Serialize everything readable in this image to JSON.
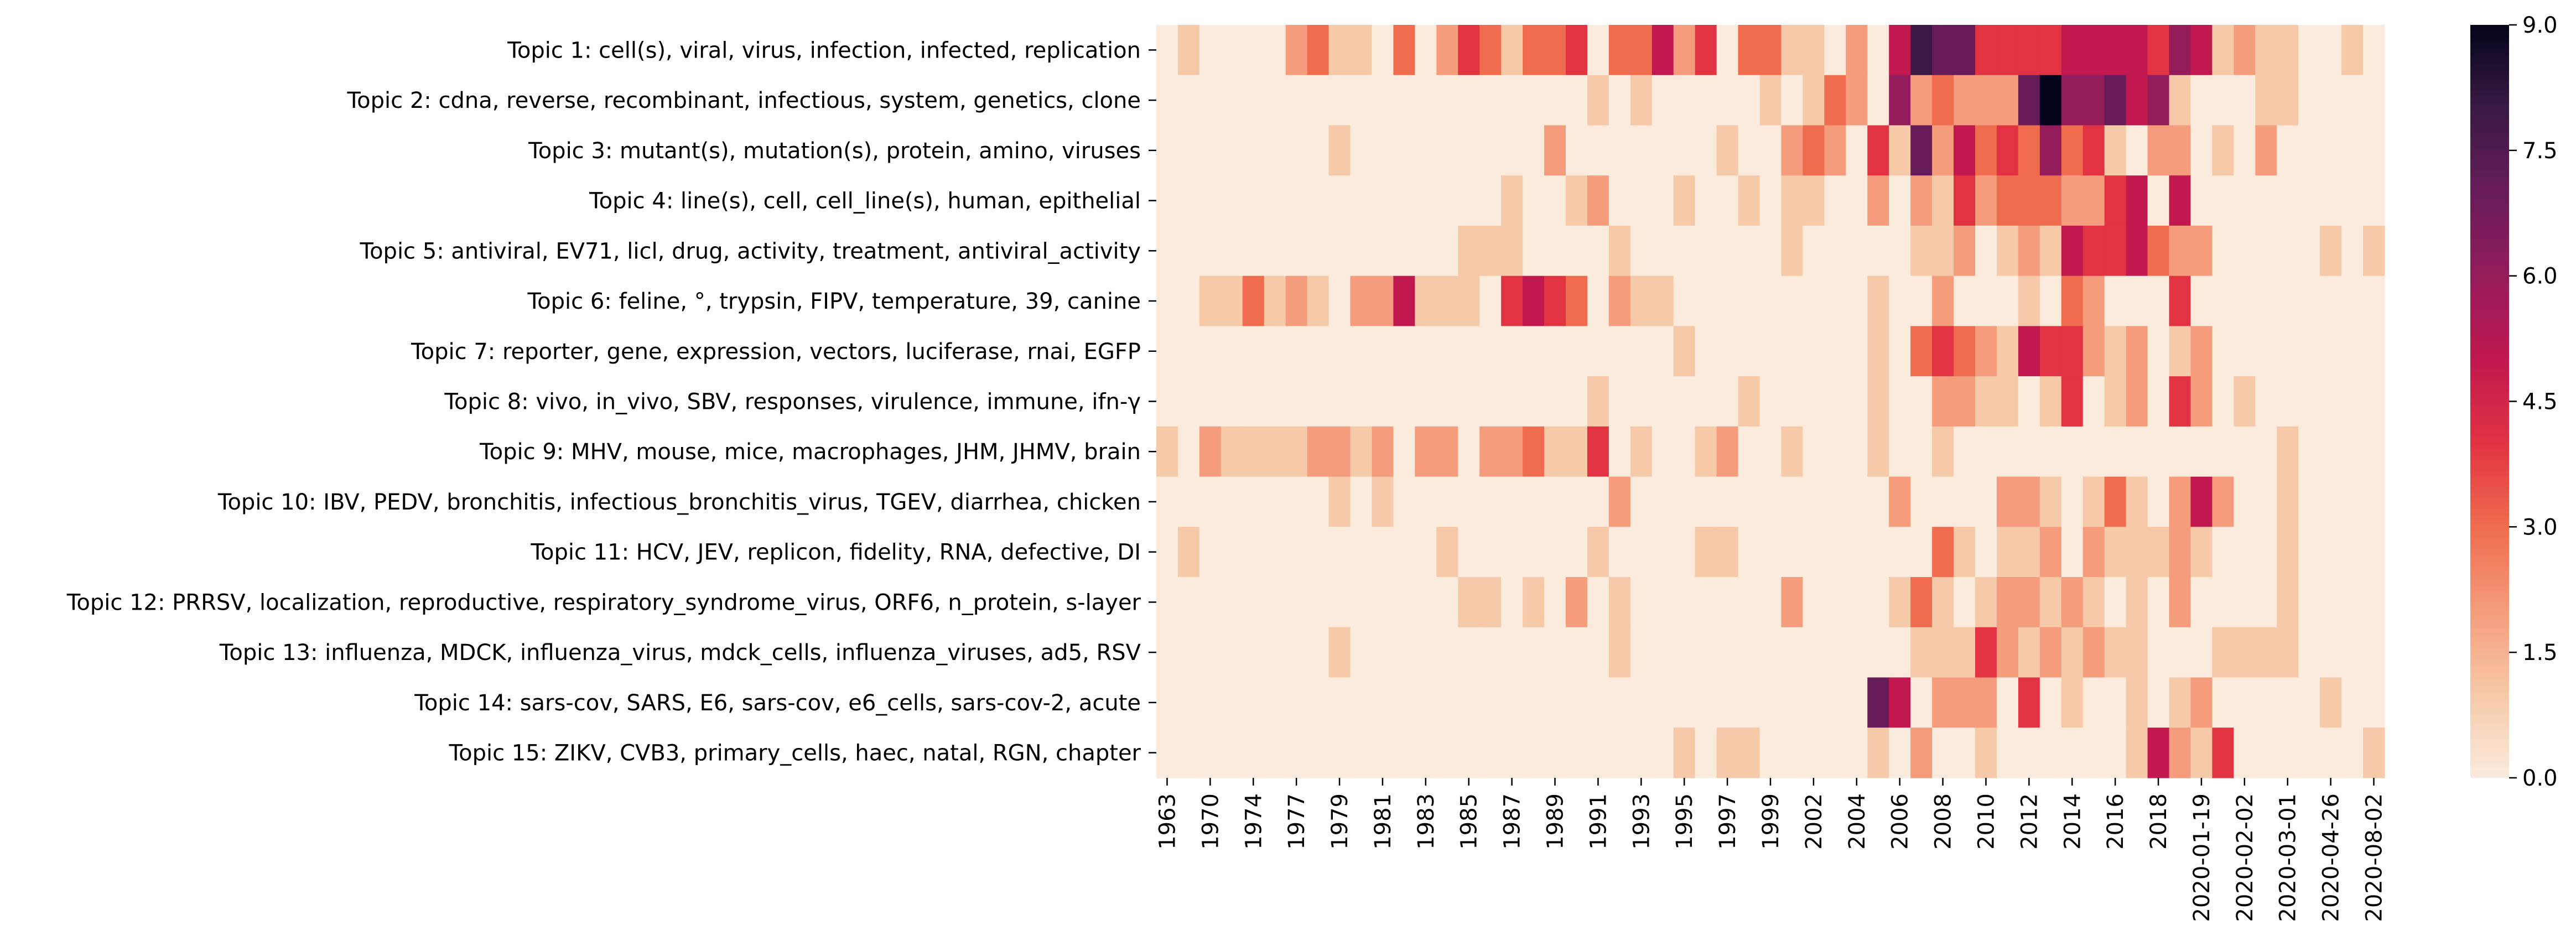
{
  "chart_data": {
    "type": "heatmap",
    "title": "",
    "xlabel": "",
    "ylabel": "",
    "rows": [
      "Topic 1: cell(s), viral, virus, infection, infected, replication",
      "Topic 2: cdna, reverse, recombinant, infectious, system, genetics, clone",
      "Topic 3: mutant(s), mutation(s), protein, amino, viruses",
      "Topic 4: line(s), cell, cell_line(s), human, epithelial",
      "Topic 5: antiviral, EV71, licl, drug, activity, treatment, antiviral_activity",
      "Topic 6: feline, °, trypsin, FIPV, temperature, 39, canine",
      "Topic 7: reporter, gene, expression, vectors, luciferase, rnai, EGFP",
      "Topic 8: vivo, in_vivo, SBV, responses, virulence, immune, ifn-γ",
      "Topic 9: MHV, mouse, mice, macrophages, JHM, JHMV, brain",
      "Topic 10: IBV, PEDV, bronchitis, infectious_bronchitis_virus, TGEV, diarrhea, chicken",
      "Topic 11: HCV, JEV, replicon, fidelity, RNA, defective, DI",
      "Topic 12: PRRSV, localization, reproductive, respiratory_syndrome_virus, ORF6, n_protein, s-layer",
      "Topic 13: influenza, MDCK, influenza_virus, mdck_cells, influenza_viruses, ad5, RSV",
      "Topic 14: sars-cov, SARS, E6, sars-cov, e6_cells, sars-cov-2, acute",
      "Topic 15: ZIKV, CVB3, primary_cells, haec, natal, RGN, chapter"
    ],
    "x_tick_labels": [
      "1963",
      "1970",
      "1974",
      "1977",
      "1979",
      "1981",
      "1983",
      "1985",
      "1987",
      "1989",
      "1991",
      "1993",
      "1995",
      "1997",
      "1999",
      "2002",
      "2004",
      "2006",
      "2008",
      "2010",
      "2012",
      "2014",
      "2016",
      "2018",
      "2020-01-19",
      "2020-02-02",
      "2020-03-01",
      "2020-04-26",
      "2020-08-02"
    ],
    "num_columns": 57,
    "values": [
      [
        0,
        1,
        0,
        0,
        0,
        0,
        2,
        3,
        1,
        1,
        0,
        3,
        0,
        2,
        4,
        3,
        1,
        3,
        3,
        4,
        0,
        3,
        3,
        5,
        2,
        4,
        0,
        3,
        3,
        1,
        1,
        0,
        2,
        0,
        5,
        8,
        7,
        7,
        4,
        4,
        4,
        4,
        5,
        5,
        5,
        5,
        4,
        6,
        5,
        1,
        2,
        1,
        1,
        0,
        0,
        1,
        0
      ],
      [
        0,
        0,
        0,
        0,
        0,
        0,
        0,
        0,
        0,
        0,
        0,
        0,
        0,
        0,
        0,
        0,
        0,
        0,
        0,
        0,
        1,
        0,
        1,
        0,
        0,
        0,
        0,
        0,
        1,
        0,
        1,
        3,
        2,
        0,
        6,
        2,
        3,
        2,
        2,
        2,
        7,
        9,
        6,
        6,
        7,
        5,
        6,
        1,
        0,
        0,
        0,
        1,
        1,
        0,
        0,
        0,
        0
      ],
      [
        0,
        0,
        0,
        0,
        0,
        0,
        0,
        0,
        1,
        0,
        0,
        0,
        0,
        0,
        0,
        0,
        0,
        0,
        2,
        0,
        0,
        0,
        0,
        0,
        0,
        0,
        1,
        0,
        0,
        2,
        3,
        2,
        0,
        4,
        1,
        7,
        2,
        5,
        3,
        4,
        3,
        6,
        3,
        4,
        1,
        0,
        2,
        2,
        0,
        1,
        0,
        2,
        0,
        0,
        0,
        0,
        0
      ],
      [
        0,
        0,
        0,
        0,
        0,
        0,
        0,
        0,
        0,
        0,
        0,
        0,
        0,
        0,
        0,
        0,
        1,
        0,
        0,
        1,
        2,
        0,
        0,
        0,
        1,
        0,
        0,
        1,
        0,
        1,
        1,
        0,
        0,
        2,
        0,
        2,
        1,
        4,
        2,
        3,
        3,
        3,
        2,
        2,
        4,
        5,
        0,
        5,
        0,
        0,
        0,
        0,
        0,
        0,
        0,
        0,
        0
      ],
      [
        0,
        0,
        0,
        0,
        0,
        0,
        0,
        0,
        0,
        0,
        0,
        0,
        0,
        0,
        1,
        1,
        1,
        0,
        0,
        0,
        0,
        1,
        0,
        0,
        0,
        0,
        0,
        0,
        0,
        1,
        0,
        0,
        0,
        0,
        0,
        1,
        1,
        2,
        0,
        1,
        2,
        1,
        5,
        4,
        4,
        5,
        3,
        2,
        2,
        0,
        0,
        0,
        0,
        0,
        1,
        0,
        1
      ],
      [
        0,
        0,
        1,
        1,
        3,
        1,
        2,
        1,
        0,
        2,
        2,
        5,
        1,
        1,
        1,
        0,
        4,
        5,
        4,
        3,
        0,
        2,
        1,
        1,
        0,
        0,
        0,
        0,
        0,
        0,
        0,
        0,
        0,
        1,
        0,
        0,
        2,
        0,
        0,
        0,
        1,
        0,
        3,
        2,
        0,
        0,
        0,
        4,
        0,
        0,
        0,
        0,
        0,
        0,
        0,
        0,
        0
      ],
      [
        0,
        0,
        0,
        0,
        0,
        0,
        0,
        0,
        0,
        0,
        0,
        0,
        0,
        0,
        0,
        0,
        0,
        0,
        0,
        0,
        0,
        0,
        0,
        0,
        1,
        0,
        0,
        0,
        0,
        0,
        0,
        0,
        0,
        1,
        0,
        3,
        4,
        3,
        2,
        1,
        5,
        4,
        4,
        2,
        1,
        2,
        0,
        1,
        2,
        0,
        0,
        0,
        0,
        0,
        0,
        0,
        0
      ],
      [
        0,
        0,
        0,
        0,
        0,
        0,
        0,
        0,
        0,
        0,
        0,
        0,
        0,
        0,
        0,
        0,
        0,
        0,
        0,
        0,
        1,
        0,
        0,
        0,
        0,
        0,
        0,
        1,
        0,
        0,
        0,
        0,
        0,
        1,
        0,
        0,
        2,
        2,
        1,
        1,
        0,
        1,
        4,
        0,
        1,
        2,
        0,
        4,
        2,
        0,
        1,
        0,
        0,
        0,
        0,
        0,
        0
      ],
      [
        1,
        0,
        2,
        1,
        1,
        1,
        1,
        2,
        2,
        1,
        2,
        0,
        2,
        2,
        0,
        2,
        2,
        3,
        1,
        1,
        4,
        0,
        1,
        0,
        0,
        1,
        2,
        0,
        0,
        1,
        0,
        0,
        0,
        1,
        0,
        0,
        1,
        0,
        0,
        0,
        0,
        0,
        0,
        0,
        0,
        0,
        0,
        0,
        0,
        0,
        0,
        0,
        1,
        0,
        0,
        0,
        0
      ],
      [
        0,
        0,
        0,
        0,
        0,
        0,
        0,
        0,
        1,
        0,
        1,
        0,
        0,
        0,
        0,
        0,
        0,
        0,
        0,
        0,
        0,
        2,
        0,
        0,
        0,
        0,
        0,
        0,
        0,
        0,
        0,
        0,
        0,
        0,
        2,
        0,
        0,
        0,
        0,
        2,
        2,
        1,
        0,
        1,
        3,
        1,
        0,
        2,
        5,
        2,
        0,
        0,
        1,
        0,
        0,
        0,
        0
      ],
      [
        0,
        1,
        0,
        0,
        0,
        0,
        0,
        0,
        0,
        0,
        0,
        0,
        0,
        1,
        0,
        0,
        0,
        0,
        0,
        0,
        1,
        0,
        0,
        0,
        0,
        1,
        1,
        0,
        0,
        0,
        0,
        0,
        0,
        0,
        0,
        0,
        3,
        1,
        0,
        1,
        1,
        2,
        0,
        2,
        1,
        1,
        1,
        2,
        1,
        0,
        0,
        0,
        1,
        0,
        0,
        0,
        0
      ],
      [
        0,
        0,
        0,
        0,
        0,
        0,
        0,
        0,
        0,
        0,
        0,
        0,
        0,
        0,
        1,
        1,
        0,
        1,
        0,
        2,
        0,
        1,
        0,
        0,
        0,
        0,
        0,
        0,
        0,
        2,
        0,
        0,
        0,
        0,
        1,
        3,
        1,
        0,
        1,
        2,
        2,
        1,
        2,
        1,
        0,
        1,
        0,
        2,
        0,
        0,
        0,
        0,
        1,
        0,
        0,
        0,
        0
      ],
      [
        0,
        0,
        0,
        0,
        0,
        0,
        0,
        0,
        1,
        0,
        0,
        0,
        0,
        0,
        0,
        0,
        0,
        0,
        0,
        0,
        0,
        1,
        0,
        0,
        0,
        0,
        0,
        0,
        0,
        0,
        0,
        0,
        0,
        0,
        0,
        1,
        1,
        1,
        4,
        2,
        1,
        2,
        1,
        2,
        1,
        1,
        0,
        0,
        0,
        1,
        1,
        1,
        1,
        0,
        0,
        0,
        0
      ],
      [
        0,
        0,
        0,
        0,
        0,
        0,
        0,
        0,
        0,
        0,
        0,
        0,
        0,
        0,
        0,
        0,
        0,
        0,
        0,
        0,
        0,
        0,
        0,
        0,
        0,
        0,
        0,
        0,
        0,
        0,
        0,
        0,
        0,
        7,
        5,
        0,
        2,
        2,
        2,
        0,
        4,
        0,
        1,
        0,
        0,
        1,
        0,
        1,
        2,
        0,
        0,
        0,
        0,
        0,
        1,
        0,
        0
      ],
      [
        0,
        0,
        0,
        0,
        0,
        0,
        0,
        0,
        0,
        0,
        0,
        0,
        0,
        0,
        0,
        0,
        0,
        0,
        0,
        0,
        0,
        0,
        0,
        0,
        1,
        0,
        1,
        1,
        0,
        0,
        0,
        0,
        0,
        1,
        0,
        2,
        0,
        0,
        1,
        0,
        0,
        0,
        0,
        0,
        0,
        1,
        5,
        2,
        1,
        4,
        0,
        0,
        0,
        0,
        0,
        0,
        1
      ]
    ],
    "colorbar": {
      "min": 0,
      "max": 9,
      "ticks": [
        "0.0",
        "1.5",
        "3.0",
        "4.5",
        "6.0",
        "7.5",
        "9.0"
      ],
      "tick_values": [
        0,
        1.5,
        3,
        4.5,
        6,
        7.5,
        9
      ]
    },
    "colormap": [
      "#faebdd",
      "#f6c9a8",
      "#f49c7b",
      "#ef6c4e",
      "#e13342",
      "#c0184f",
      "#951c5b",
      "#671c5a",
      "#3a1a44",
      "#03051a"
    ],
    "grid": false
  }
}
